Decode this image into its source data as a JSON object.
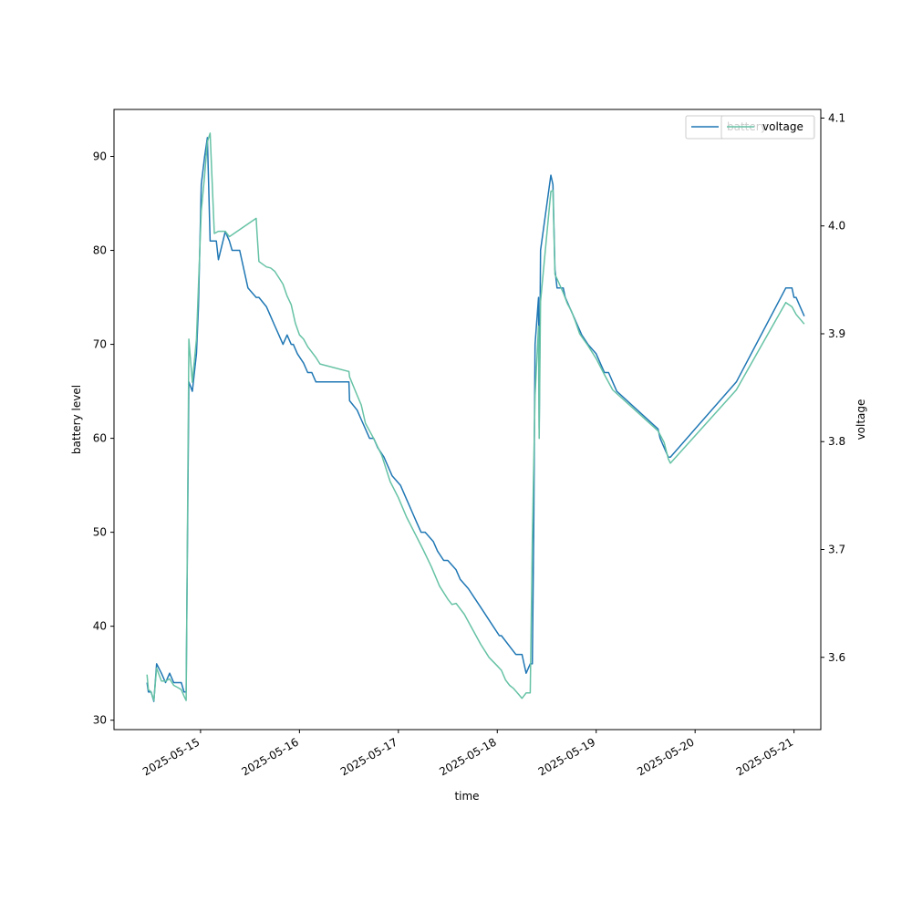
{
  "chart_data": {
    "type": "line",
    "xlabel": "time",
    "ylabel": "battery level",
    "y2label": "voltage",
    "x_ticks": [
      "2025-05-15",
      "2025-05-16",
      "2025-05-17",
      "2025-05-18",
      "2025-05-19",
      "2025-05-20",
      "2025-05-21"
    ],
    "xlim": [
      "2025-05-14 03:00",
      "2025-05-21 06:30"
    ],
    "ylim": [
      29,
      95
    ],
    "y2lim": [
      3.533,
      4.108
    ],
    "y_ticks": [
      30,
      40,
      50,
      60,
      70,
      80,
      90
    ],
    "y2_ticks": [
      3.6,
      3.7,
      3.8,
      3.9,
      4.0,
      4.1
    ],
    "legend_position": "top-right",
    "series": [
      {
        "name": "battery",
        "axis": "left",
        "color": "#1f77b4",
        "x": [
          "2025-05-14 11:00",
          "2025-05-14 11:20",
          "2025-05-14 12:00",
          "2025-05-14 12:40",
          "2025-05-14 13:20",
          "2025-05-14 14:30",
          "2025-05-14 15:30",
          "2025-05-14 16:30",
          "2025-05-14 17:30",
          "2025-05-14 18:30",
          "2025-05-14 19:20",
          "2025-05-14 20:00",
          "2025-05-14 20:30",
          "2025-05-14 21:10",
          "2025-05-14 22:00",
          "2025-05-14 23:00",
          "2025-05-14 23:30",
          "2025-05-15 00:10",
          "2025-05-15 01:00",
          "2025-05-15 01:40",
          "2025-05-15 02:20",
          "2025-05-15 03:20",
          "2025-05-15 03:50",
          "2025-05-15 04:20",
          "2025-05-15 06:00",
          "2025-05-15 07:00",
          "2025-05-15 07:40",
          "2025-05-15 09:30",
          "2025-05-15 11:30",
          "2025-05-15 13:30",
          "2025-05-15 13:40",
          "2025-05-15 14:10",
          "2025-05-15 16:00",
          "2025-05-15 17:00",
          "2025-05-15 18:00",
          "2025-05-15 19:00",
          "2025-05-15 20:00",
          "2025-05-15 21:00",
          "2025-05-15 22:00",
          "2025-05-15 22:30",
          "2025-05-15 23:30",
          "2025-05-16 01:00",
          "2025-05-16 02:00",
          "2025-05-16 03:00",
          "2025-05-16 04:00",
          "2025-05-16 05:00",
          "2025-05-16 07:00",
          "2025-05-16 12:00",
          "2025-05-16 12:10",
          "2025-05-16 14:00",
          "2025-05-16 15:00",
          "2025-05-16 16:00",
          "2025-05-16 17:00",
          "2025-05-16 18:00",
          "2025-05-16 19:00",
          "2025-05-16 20:30",
          "2025-05-16 22:30",
          "2025-05-17 00:30",
          "2025-05-17 01:30",
          "2025-05-17 02:30",
          "2025-05-17 03:30",
          "2025-05-17 04:30",
          "2025-05-17 05:30",
          "2025-05-17 06:30",
          "2025-05-17 08:30",
          "2025-05-17 09:30",
          "2025-05-17 11:00",
          "2025-05-17 12:00",
          "2025-05-17 14:00",
          "2025-05-17 15:00",
          "2025-05-17 17:00",
          "2025-05-17 18:30",
          "2025-05-17 20:00",
          "2025-05-17 21:30",
          "2025-05-17 23:00",
          "2025-05-18 00:30",
          "2025-05-18 01:00",
          "2025-05-18 04:30",
          "2025-05-18 06:00",
          "2025-05-18 06:30",
          "2025-05-18 07:00",
          "2025-05-18 08:00",
          "2025-05-18 08:30",
          "2025-05-18 08:50",
          "2025-05-18 09:10",
          "2025-05-18 10:00",
          "2025-05-18 10:10",
          "2025-05-18 10:30",
          "2025-05-18 13:00",
          "2025-05-18 13:30",
          "2025-05-18 14:00",
          "2025-05-18 14:30",
          "2025-05-18 16:00",
          "2025-05-18 16:30",
          "2025-05-18 17:30",
          "2025-05-18 18:30",
          "2025-05-18 19:30",
          "2025-05-18 20:30",
          "2025-05-18 22:00",
          "2025-05-19 00:00",
          "2025-05-19 01:00",
          "2025-05-19 02:00",
          "2025-05-19 03:00",
          "2025-05-19 04:00",
          "2025-05-19 05:00",
          "2025-05-19 15:00",
          "2025-05-19 15:30",
          "2025-05-19 16:30",
          "2025-05-19 17:30",
          "2025-05-19 18:00",
          "2025-05-20 10:00",
          "2025-05-20 22:00",
          "2025-05-20 23:30",
          "2025-05-21 00:00",
          "2025-05-21 00:30",
          "2025-05-21 01:30",
          "2025-05-21 02:30"
        ],
        "y": [
          34,
          33,
          33,
          32,
          36,
          35,
          34,
          35,
          34,
          34,
          34,
          33,
          33,
          66,
          65,
          69,
          74,
          87,
          90,
          92,
          81,
          81,
          81,
          79,
          82,
          81,
          80,
          80,
          76,
          75,
          75,
          75,
          74,
          73,
          72,
          71,
          70,
          71,
          70,
          70,
          69,
          68,
          67,
          67,
          66,
          66,
          66,
          66,
          64,
          63,
          62,
          61,
          60,
          60,
          59,
          58,
          56,
          55,
          54,
          53,
          52,
          51,
          50,
          50,
          49,
          48,
          47,
          47,
          46,
          45,
          44,
          43,
          42,
          41,
          40,
          39,
          39,
          37,
          37,
          36,
          35,
          36,
          36,
          50,
          70,
          75,
          61,
          80,
          88,
          87,
          78,
          76,
          76,
          75,
          74,
          73,
          72,
          71,
          70,
          69,
          68,
          67,
          67,
          66,
          65,
          61,
          60,
          59,
          58,
          58,
          66,
          76,
          76,
          75,
          75,
          74,
          73
        ]
      },
      {
        "name": "voltage",
        "axis": "right",
        "color": "#66c2a5",
        "x": [
          "2025-05-14 11:00",
          "2025-05-14 11:20",
          "2025-05-14 12:00",
          "2025-05-14 12:40",
          "2025-05-14 13:20",
          "2025-05-14 14:30",
          "2025-05-14 15:30",
          "2025-05-14 16:30",
          "2025-05-14 17:30",
          "2025-05-14 18:30",
          "2025-05-14 19:20",
          "2025-05-14 20:00",
          "2025-05-14 20:30",
          "2025-05-14 21:10",
          "2025-05-14 22:00",
          "2025-05-14 23:00",
          "2025-05-15 00:10",
          "2025-05-15 01:00",
          "2025-05-15 01:40",
          "2025-05-15 02:20",
          "2025-05-15 03:20",
          "2025-05-15 04:20",
          "2025-05-15 06:00",
          "2025-05-15 07:00",
          "2025-05-15 13:30",
          "2025-05-15 13:40",
          "2025-05-15 14:10",
          "2025-05-15 16:00",
          "2025-05-15 17:00",
          "2025-05-15 18:00",
          "2025-05-15 19:00",
          "2025-05-15 20:00",
          "2025-05-15 21:00",
          "2025-05-15 22:00",
          "2025-05-15 23:00",
          "2025-05-16 00:00",
          "2025-05-16 01:00",
          "2025-05-16 02:00",
          "2025-05-16 03:00",
          "2025-05-16 04:00",
          "2025-05-16 05:00",
          "2025-05-16 12:00",
          "2025-05-16 12:10",
          "2025-05-16 14:00",
          "2025-05-16 15:00",
          "2025-05-16 16:00",
          "2025-05-16 18:00",
          "2025-05-16 20:00",
          "2025-05-16 22:00",
          "2025-05-17 00:00",
          "2025-05-17 02:00",
          "2025-05-17 04:00",
          "2025-05-17 06:00",
          "2025-05-17 08:00",
          "2025-05-17 10:00",
          "2025-05-17 12:00",
          "2025-05-17 13:00",
          "2025-05-17 14:00",
          "2025-05-17 16:00",
          "2025-05-17 18:00",
          "2025-05-17 20:00",
          "2025-05-17 22:00",
          "2025-05-18 00:00",
          "2025-05-18 01:00",
          "2025-05-18 02:00",
          "2025-05-18 03:00",
          "2025-05-18 04:00",
          "2025-05-18 06:00",
          "2025-05-18 07:00",
          "2025-05-18 08:00",
          "2025-05-18 08:30",
          "2025-05-18 09:10",
          "2025-05-18 10:00",
          "2025-05-18 10:10",
          "2025-05-18 10:30",
          "2025-05-18 13:00",
          "2025-05-18 13:30",
          "2025-05-18 14:00",
          "2025-05-18 14:30",
          "2025-05-18 16:00",
          "2025-05-18 17:00",
          "2025-05-18 18:00",
          "2025-05-18 19:00",
          "2025-05-18 20:00",
          "2025-05-18 22:00",
          "2025-05-19 00:00",
          "2025-05-19 02:00",
          "2025-05-19 04:00",
          "2025-05-19 15:00",
          "2025-05-19 16:30",
          "2025-05-19 17:30",
          "2025-05-19 18:00",
          "2025-05-20 10:00",
          "2025-05-20 22:00",
          "2025-05-20 23:30",
          "2025-05-21 00:30",
          "2025-05-21 02:30"
        ],
        "y": [
          3.584,
          3.57,
          3.568,
          3.56,
          3.59,
          3.578,
          3.578,
          3.58,
          3.574,
          3.572,
          3.57,
          3.564,
          3.56,
          3.895,
          3.855,
          3.895,
          4.014,
          4.047,
          4.078,
          4.086,
          3.993,
          3.995,
          3.995,
          3.99,
          4.007,
          3.995,
          3.967,
          3.962,
          3.961,
          3.958,
          3.952,
          3.946,
          3.935,
          3.927,
          3.91,
          3.899,
          3.895,
          3.888,
          3.883,
          3.878,
          3.872,
          3.865,
          3.86,
          3.843,
          3.834,
          3.817,
          3.803,
          3.787,
          3.763,
          3.748,
          3.73,
          3.715,
          3.7,
          3.684,
          3.666,
          3.654,
          3.649,
          3.65,
          3.64,
          3.626,
          3.612,
          3.6,
          3.592,
          3.588,
          3.579,
          3.574,
          3.571,
          3.562,
          3.567,
          3.567,
          3.71,
          3.843,
          3.907,
          3.803,
          3.93,
          4.032,
          4.033,
          3.955,
          3.951,
          3.938,
          3.928,
          3.921,
          3.911,
          3.9,
          3.889,
          3.877,
          3.862,
          3.848,
          3.81,
          3.799,
          3.784,
          3.78,
          3.848,
          3.929,
          3.925,
          3.918,
          3.909
        ]
      }
    ]
  }
}
